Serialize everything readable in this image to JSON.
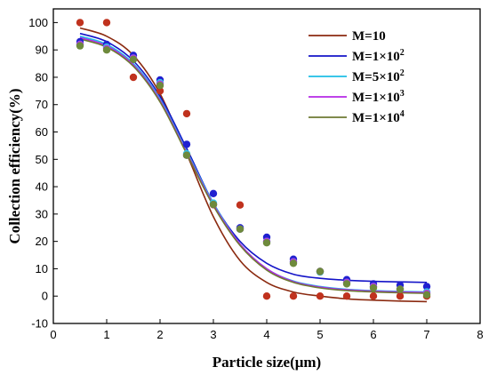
{
  "chart_data": {
    "type": "scatter",
    "title": "",
    "xlabel": "Particle size(μm)",
    "ylabel": "Collection efficiency(%)",
    "xlim": [
      0,
      8
    ],
    "ylim": [
      -10,
      105
    ],
    "x_ticks": [
      0,
      1,
      2,
      3,
      4,
      5,
      6,
      7,
      8
    ],
    "y_ticks": [
      -10,
      0,
      10,
      20,
      30,
      40,
      50,
      60,
      70,
      80,
      90,
      100
    ],
    "grid": false,
    "legend_position": "top-right",
    "x": [
      0.5,
      1.0,
      1.5,
      2.0,
      2.5,
      3.0,
      3.5,
      4.0,
      4.5,
      5.0,
      5.5,
      6.0,
      6.5,
      7.0
    ],
    "series": [
      {
        "name": "M=10",
        "label_base": "M=10",
        "label_exp": "",
        "color": "#8B2A10",
        "point_color": "#C0321E",
        "values": [
          100,
          100,
          80,
          75,
          66.7,
          33.4,
          33.3,
          0,
          0,
          0,
          0,
          0,
          0,
          0
        ],
        "fit": [
          98,
          95,
          88,
          74,
          52,
          29,
          13,
          5,
          1.5,
          0,
          -1,
          -1.5,
          -1.8,
          -2
        ]
      },
      {
        "name": "M=1×10²",
        "label_base": "M=1×10",
        "label_exp": "2",
        "color": "#1414C8",
        "point_color": "#2020D0",
        "values": [
          93,
          92,
          88,
          79,
          55.5,
          37.5,
          25,
          21.5,
          13.5,
          9,
          6,
          4.5,
          4,
          3.5
        ],
        "fit": [
          96,
          93,
          86,
          73,
          54,
          34,
          20,
          12,
          8,
          6.5,
          5.8,
          5.4,
          5.2,
          5
        ]
      },
      {
        "name": "M=5×10²",
        "label_base": "M=5×10",
        "label_exp": "2",
        "color": "#1EBEE6",
        "point_color": "#30C8E8",
        "values": [
          92,
          91,
          87,
          78,
          52,
          34,
          24.5,
          20,
          12.5,
          8.8,
          5,
          3.5,
          2.5,
          1.5
        ],
        "fit": [
          95,
          92,
          85,
          72,
          53,
          34,
          19,
          10,
          5.5,
          3.5,
          2.5,
          2,
          1.7,
          1.5
        ]
      },
      {
        "name": "M=1×10³",
        "label_base": "M=1×10",
        "label_exp": "3",
        "color": "#B428E6",
        "point_color": "#B040E0",
        "values": [
          92,
          90.5,
          87,
          77.5,
          51.5,
          33.5,
          24.5,
          20,
          12.5,
          9,
          5,
          3.5,
          2.5,
          1
        ],
        "fit": [
          94.5,
          91.5,
          84.5,
          71.5,
          52.5,
          33.5,
          19,
          10,
          5.3,
          3.3,
          2.3,
          1.8,
          1.5,
          1.3
        ]
      },
      {
        "name": "M=1×10⁴",
        "label_base": "M=1×10",
        "label_exp": "4",
        "color": "#6E7A32",
        "point_color": "#6E8A3C",
        "values": [
          91.5,
          90,
          86.5,
          77,
          51.5,
          33.5,
          24.5,
          19.5,
          12,
          9,
          4.5,
          3,
          2.5,
          0.5
        ],
        "fit": [
          94,
          91,
          84,
          71,
          52,
          33,
          18.5,
          9.5,
          5,
          3,
          2,
          1.5,
          1.2,
          1
        ]
      }
    ]
  }
}
